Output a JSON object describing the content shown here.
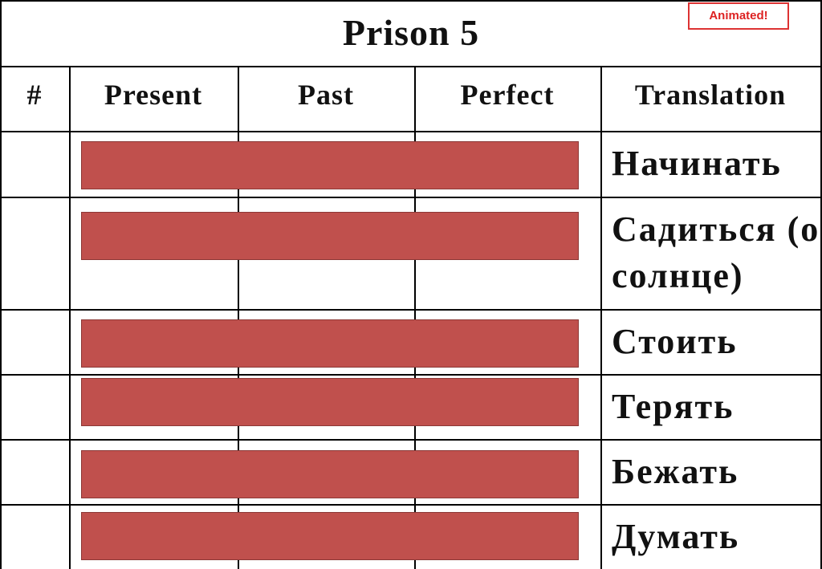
{
  "title": "Prison 5",
  "badge": "Animated!",
  "table": {
    "header": [
      "#",
      "Present",
      "Past",
      "Perfect",
      "Translation"
    ],
    "rows": [
      {
        "translation": "Начинать"
      },
      {
        "translation": "Садиться (о солнце)"
      },
      {
        "translation": "Стоить"
      },
      {
        "translation": "Терять"
      },
      {
        "translation": "Бежать"
      },
      {
        "translation": "Думать"
      }
    ]
  }
}
